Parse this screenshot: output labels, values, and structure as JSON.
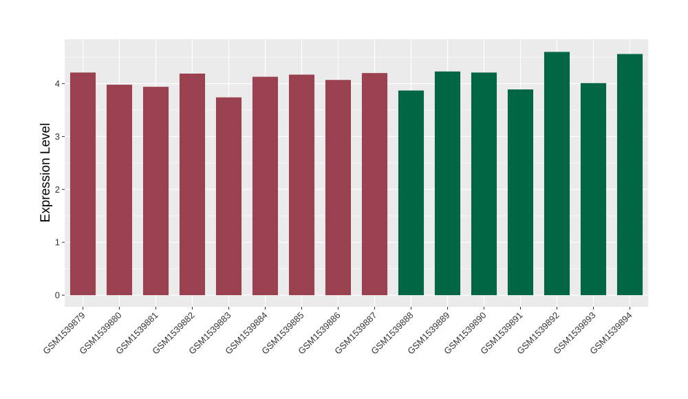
{
  "chart_data": {
    "type": "bar",
    "title": "",
    "xlabel": "",
    "ylabel": "Expression Level",
    "ylim": [
      -0.22,
      4.84
    ],
    "yticks": [
      0,
      1,
      2,
      3,
      4
    ],
    "grid": true,
    "legend": "none",
    "categories": [
      "GSM1539879",
      "GSM1539880",
      "GSM1539881",
      "GSM1539882",
      "GSM1539883",
      "GSM1539884",
      "GSM1539885",
      "GSM1539886",
      "GSM1539887",
      "GSM1539888",
      "GSM1539889",
      "GSM1539890",
      "GSM1539891",
      "GSM1539892",
      "GSM1539893",
      "GSM1539894"
    ],
    "values": [
      4.21,
      3.98,
      3.94,
      4.19,
      3.74,
      4.13,
      4.17,
      4.07,
      4.2,
      3.87,
      4.23,
      4.21,
      3.89,
      4.6,
      4.01,
      4.56
    ],
    "bar_colors": [
      "#9A4150",
      "#9A4150",
      "#9A4150",
      "#9A4150",
      "#9A4150",
      "#9A4150",
      "#9A4150",
      "#9A4150",
      "#9A4150",
      "#006644",
      "#006644",
      "#006644",
      "#006644",
      "#006644",
      "#006644",
      "#006644"
    ],
    "panel_background": "#EBEBEB",
    "grid_color": "#FFFFFF"
  }
}
